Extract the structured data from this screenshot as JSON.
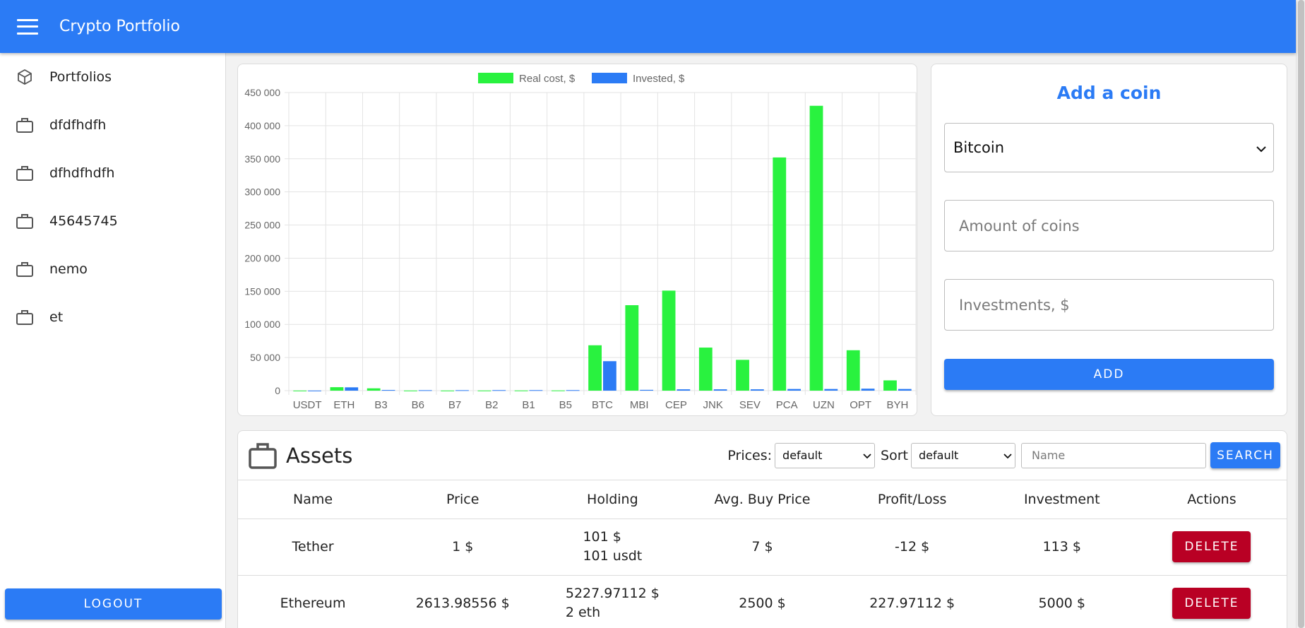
{
  "app": {
    "title": "Crypto Portfolio"
  },
  "sidebar": {
    "items": [
      {
        "label": "Portfolios",
        "icon": "cube-icon"
      },
      {
        "label": "dfdfhdfh",
        "icon": "briefcase-icon"
      },
      {
        "label": "dfhdfhdfh",
        "icon": "briefcase-icon"
      },
      {
        "label": "45645745",
        "icon": "briefcase-icon"
      },
      {
        "label": "nemo",
        "icon": "briefcase-icon"
      },
      {
        "label": "et",
        "icon": "briefcase-icon"
      }
    ],
    "logout_label": "LOGOUT"
  },
  "chart_data": {
    "type": "bar",
    "categories": [
      "USDT",
      "ETH",
      "B3",
      "B6",
      "B7",
      "B2",
      "B1",
      "B5",
      "BTC",
      "MBI",
      "CEP",
      "JNK",
      "SEV",
      "PCA",
      "UZN",
      "OPT",
      "BYH"
    ],
    "series": [
      {
        "name": "Real cost, $",
        "color": "#29f23f",
        "values": [
          101,
          5228,
          3500,
          150,
          150,
          200,
          250,
          300,
          68500,
          129000,
          151000,
          65000,
          46500,
          352000,
          430000,
          61000,
          15500
        ]
      },
      {
        "name": "Invested, $",
        "color": "#2b7bf5",
        "values": [
          113,
          5000,
          1000,
          700,
          700,
          800,
          800,
          800,
          44500,
          1200,
          2000,
          2000,
          2000,
          2500,
          2500,
          3000,
          2500
        ]
      }
    ],
    "ylim": [
      0,
      450000
    ],
    "yticks": [
      "450 000",
      "400 000",
      "350 000",
      "300 000",
      "250 000",
      "200 000",
      "150 000",
      "100 000",
      "50 000",
      "0"
    ],
    "grid": true,
    "legend": "top-center"
  },
  "add_coin": {
    "title": "Add a coin",
    "selected_coin": "Bitcoin",
    "amount_placeholder": "Amount of coins",
    "investment_placeholder": "Investments, $",
    "add_label": "ADD"
  },
  "assets": {
    "title": "Assets",
    "prices_label": "Prices:",
    "prices_value": "default",
    "sort_label": "Sort",
    "sort_value": "default",
    "name_placeholder": "Name",
    "search_label": "SEARCH",
    "columns": [
      "Name",
      "Price",
      "Holding",
      "Avg. Buy Price",
      "Profit/Loss",
      "Investment",
      "Actions"
    ],
    "rows": [
      {
        "name": "Tether",
        "price": "1 $",
        "holding_usd": "101 $",
        "holding_coins": "101 usdt",
        "avg": "7 $",
        "pl": "-12 $",
        "investment": "113 $",
        "action": "DELETE"
      },
      {
        "name": "Ethereum",
        "price": "2613.98556 $",
        "holding_usd": "5227.97112 $",
        "holding_coins": "2 eth",
        "avg": "2500 $",
        "pl": "227.97112 $",
        "investment": "5000 $",
        "action": "DELETE"
      }
    ]
  }
}
